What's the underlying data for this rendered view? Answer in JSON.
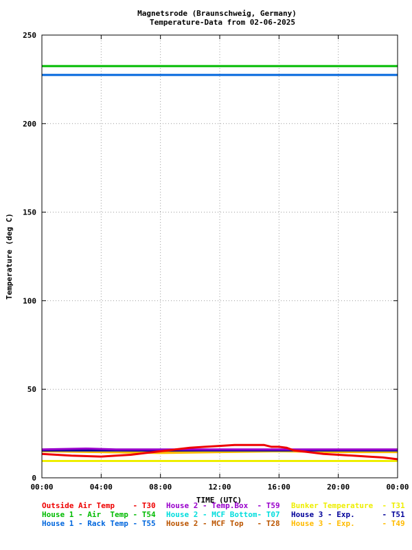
{
  "chart_data": {
    "type": "line",
    "title": "Magnetsrode (Braunschweig, Germany)",
    "subtitle": "Temperature-Data from 02-06-2025",
    "xlabel": "TIME (UTC)",
    "ylabel": "Temperature (deg C)",
    "xlim": [
      0,
      24
    ],
    "ylim": [
      0,
      250
    ],
    "x_ticks": [
      0,
      4,
      8,
      12,
      16,
      20,
      24
    ],
    "x_tick_labels": [
      "00:00",
      "04:00",
      "08:00",
      "12:00",
      "16:00",
      "20:00",
      "00:00"
    ],
    "y_ticks": [
      0,
      50,
      100,
      150,
      200,
      250
    ],
    "y_tick_labels": [
      "0",
      "50",
      "100",
      "150",
      "200",
      "250"
    ],
    "grid": true,
    "legend_position": "bottom",
    "series": [
      {
        "name": "Outside Air Temp    - T30",
        "color": "#ee0000",
        "x": [
          0,
          2,
          4,
          5,
          6,
          7,
          8,
          9,
          10,
          11,
          12,
          13,
          14,
          15,
          15.5,
          16,
          16.5,
          17,
          18,
          19,
          20,
          21,
          22,
          23,
          24
        ],
        "y": [
          13.5,
          12.5,
          12,
          12.5,
          13,
          14,
          15,
          16,
          17,
          17.5,
          18,
          18.5,
          18.5,
          18.5,
          17.5,
          17.5,
          17,
          15.5,
          14.5,
          13.5,
          13,
          12.5,
          12,
          11.5,
          10.5
        ]
      },
      {
        "name": "House 2 - Temp.Box  - T59",
        "color": "#9900cc",
        "x": [
          0,
          3,
          5,
          24
        ],
        "y": [
          16,
          16.5,
          16,
          16
        ]
      },
      {
        "name": "Bunker Temperature  - T31",
        "color": "#eeee00",
        "x": [
          0,
          24
        ],
        "y": [
          9.5,
          9.5
        ]
      },
      {
        "name": "House 1 - Air  Temp - T54",
        "color": "#00bb00",
        "x": [
          0,
          24
        ],
        "y": [
          232.5,
          232.5
        ]
      },
      {
        "name": "House 2 - MCF Bottom- T07",
        "color": "#00dddd",
        "x": [
          0,
          24
        ],
        "y": [
          15.5,
          15.5
        ]
      },
      {
        "name": "House 3 - Exp.      - T51",
        "color": "#000099",
        "x": [
          0,
          24
        ],
        "y": [
          15.5,
          15.5
        ]
      },
      {
        "name": "House 1 - Rack Temp - T55",
        "color": "#0066dd",
        "x": [
          0,
          24
        ],
        "y": [
          227.5,
          227.5
        ]
      },
      {
        "name": "House 2 - MCF Top   - T28",
        "color": "#bb5500",
        "x": [
          0,
          4,
          8,
          12,
          16,
          20,
          24
        ],
        "y": [
          15,
          15,
          14.5,
          15,
          15.5,
          15,
          15
        ]
      },
      {
        "name": "House 3 - Exp.      - T49",
        "color": "#ffbb00",
        "x": [
          0,
          4,
          8,
          12,
          16,
          20,
          24
        ],
        "y": [
          15,
          14.5,
          14,
          14.5,
          15,
          14.5,
          14.5
        ]
      }
    ]
  }
}
